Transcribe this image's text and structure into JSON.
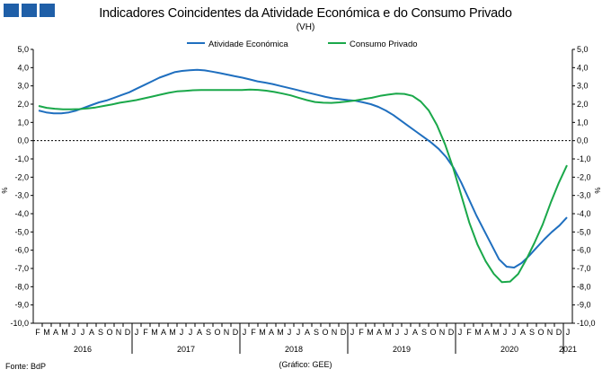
{
  "header": {
    "title": "Indicadores Coincidentes da Atividade Económica e do Consumo Privado",
    "subtitle": "(VH)"
  },
  "footer": {
    "source": "Fonte: BdP",
    "credit": "(Gráfico: GEE)"
  },
  "colors": {
    "logo": "#1f5fa8",
    "atividade": "#1f6fbf",
    "consumo": "#1aa84a",
    "axis": "#000000"
  },
  "chart_data": {
    "type": "line",
    "title": "Indicadores Coincidentes da Atividade Económica e do Consumo Privado",
    "subtitle": "(VH)",
    "ylabel_left": "%",
    "ylabel_right": "%",
    "ylim": [
      -10,
      5
    ],
    "yticks": [
      "5,0",
      "4,0",
      "3,0",
      "2,0",
      "1,0",
      "0,0",
      "-1,0",
      "-2,0",
      "-3,0",
      "-4,0",
      "-5,0",
      "-6,0",
      "-7,0",
      "-8,0",
      "-9,0",
      "-10,0"
    ],
    "grid": false,
    "zero_line": "dashed",
    "legend_position": "top-center",
    "x_month_labels": [
      "F",
      "M",
      "A",
      "M",
      "J",
      "J",
      "A",
      "S",
      "O",
      "N",
      "D",
      "J",
      "F",
      "M",
      "A",
      "M",
      "J",
      "J",
      "A",
      "S",
      "O",
      "N",
      "D",
      "J",
      "F",
      "M",
      "A",
      "M",
      "J",
      "J",
      "A",
      "S",
      "O",
      "N",
      "D",
      "J",
      "F",
      "M",
      "A",
      "M",
      "J",
      "J",
      "A",
      "S",
      "O",
      "N",
      "D",
      "J",
      "F",
      "M",
      "A",
      "M",
      "J",
      "J",
      "A",
      "S",
      "O",
      "N",
      "D",
      "J"
    ],
    "x_year_labels": [
      "2016",
      "2017",
      "2018",
      "2019",
      "2020",
      "2021"
    ],
    "series": [
      {
        "name": "Atividade Económica",
        "values": [
          1.65,
          1.55,
          1.5,
          1.5,
          1.55,
          1.65,
          1.8,
          1.95,
          2.1,
          2.2,
          2.35,
          2.5,
          2.65,
          2.85,
          3.05,
          3.25,
          3.45,
          3.6,
          3.75,
          3.82,
          3.86,
          3.88,
          3.85,
          3.78,
          3.7,
          3.62,
          3.53,
          3.45,
          3.35,
          3.25,
          3.18,
          3.1,
          3.0,
          2.9,
          2.8,
          2.7,
          2.6,
          2.5,
          2.4,
          2.32,
          2.27,
          2.22,
          2.18,
          2.1,
          2.0,
          1.85,
          1.65,
          1.4,
          1.1,
          0.8,
          0.5,
          0.2,
          -0.1,
          -0.45,
          -0.9,
          -1.5,
          -2.3,
          -3.2,
          -4.1,
          -4.9,
          -5.7,
          -6.5,
          -6.9,
          -6.95,
          -6.7,
          -6.3,
          -5.85,
          -5.4,
          -5.0,
          -4.65,
          -4.2
        ]
      },
      {
        "name": "Consumo Privado",
        "values": [
          1.9,
          1.8,
          1.75,
          1.72,
          1.72,
          1.73,
          1.77,
          1.82,
          1.9,
          1.98,
          2.08,
          2.15,
          2.22,
          2.32,
          2.42,
          2.52,
          2.62,
          2.7,
          2.73,
          2.76,
          2.77,
          2.77,
          2.77,
          2.77,
          2.77,
          2.77,
          2.8,
          2.78,
          2.74,
          2.67,
          2.58,
          2.48,
          2.35,
          2.22,
          2.12,
          2.08,
          2.07,
          2.1,
          2.15,
          2.2,
          2.28,
          2.35,
          2.45,
          2.52,
          2.58,
          2.56,
          2.45,
          2.15,
          1.65,
          0.85,
          -0.2,
          -1.5,
          -3.0,
          -4.5,
          -5.7,
          -6.6,
          -7.3,
          -7.75,
          -7.72,
          -7.3,
          -6.5,
          -5.6,
          -4.6,
          -3.4,
          -2.3,
          -1.35
        ]
      }
    ]
  }
}
